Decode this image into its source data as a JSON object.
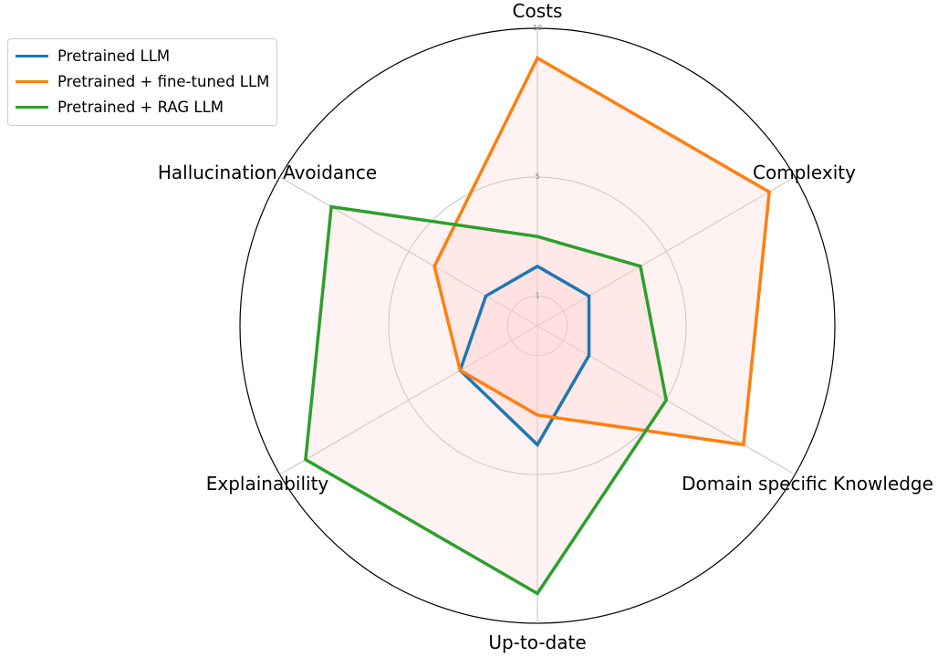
{
  "chart_data": {
    "type": "radar",
    "axes": [
      "Costs",
      "Complexity",
      "Domain specific Knowledge",
      "Up-to-date",
      "Explainability",
      "Hallucination Avoidance"
    ],
    "rlim": [
      0,
      10
    ],
    "radial_ticks": [
      1,
      5,
      10
    ],
    "grid": true,
    "legend_position": "top-left",
    "fill_color": "#ffcccc",
    "series": [
      {
        "name": "Pretrained LLM",
        "color": "#1f77b4",
        "values": [
          2,
          2,
          2,
          4,
          3,
          2
        ]
      },
      {
        "name": "Pretrained + fine-tuned LLM",
        "color": "#ff7f0e",
        "values": [
          9,
          9,
          8,
          3,
          3,
          4
        ]
      },
      {
        "name": "Pretrained + RAG LLM",
        "color": "#2ca02c",
        "values": [
          3,
          4,
          5,
          9,
          9,
          8
        ]
      }
    ]
  }
}
